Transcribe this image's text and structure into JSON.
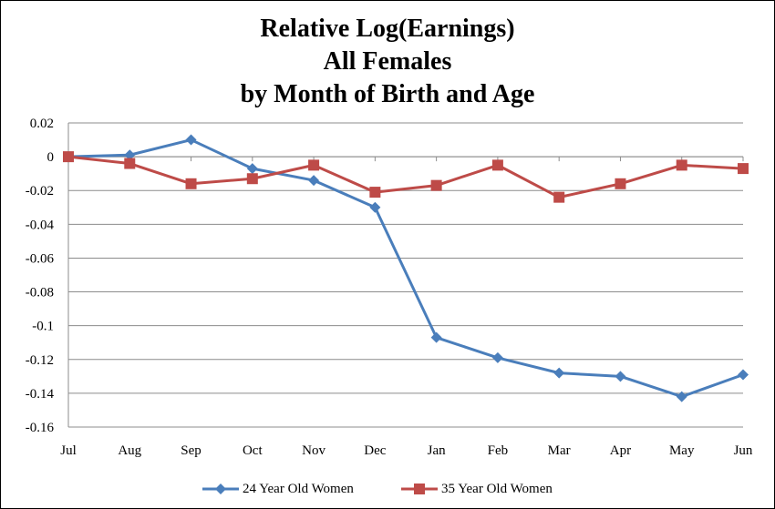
{
  "chart_data": {
    "type": "line",
    "title_lines": [
      "Relative Log(Earnings)",
      "All Females",
      "by Month of Birth and Age"
    ],
    "categories": [
      "Jul",
      "Aug",
      "Sep",
      "Oct",
      "Nov",
      "Dec",
      "Jan",
      "Feb",
      "Mar",
      "Apr",
      "May",
      "Jun"
    ],
    "ylim": [
      -0.16,
      0.02
    ],
    "yticks": [
      0.02,
      0,
      -0.02,
      -0.04,
      -0.06,
      -0.08,
      -0.1,
      -0.12,
      -0.14,
      -0.16
    ],
    "ytick_labels": [
      "0.02",
      "0",
      "-0.02",
      "-0.04",
      "-0.06",
      "-0.08",
      "-0.1",
      "-0.12",
      "-0.14",
      "-0.16"
    ],
    "grid": true,
    "legend_position": "bottom",
    "series": [
      {
        "name": "24 Year Old Women",
        "color": "#4a7ebb",
        "marker": "diamond",
        "values": [
          0,
          0.001,
          0.01,
          -0.007,
          -0.014,
          -0.03,
          -0.107,
          -0.119,
          -0.128,
          -0.13,
          -0.142,
          -0.129
        ]
      },
      {
        "name": "35 Year Old Women",
        "color": "#be4b48",
        "marker": "square",
        "values": [
          0,
          -0.004,
          -0.016,
          -0.013,
          -0.005,
          -0.021,
          -0.017,
          -0.005,
          -0.024,
          -0.016,
          -0.005,
          -0.007
        ]
      }
    ]
  }
}
